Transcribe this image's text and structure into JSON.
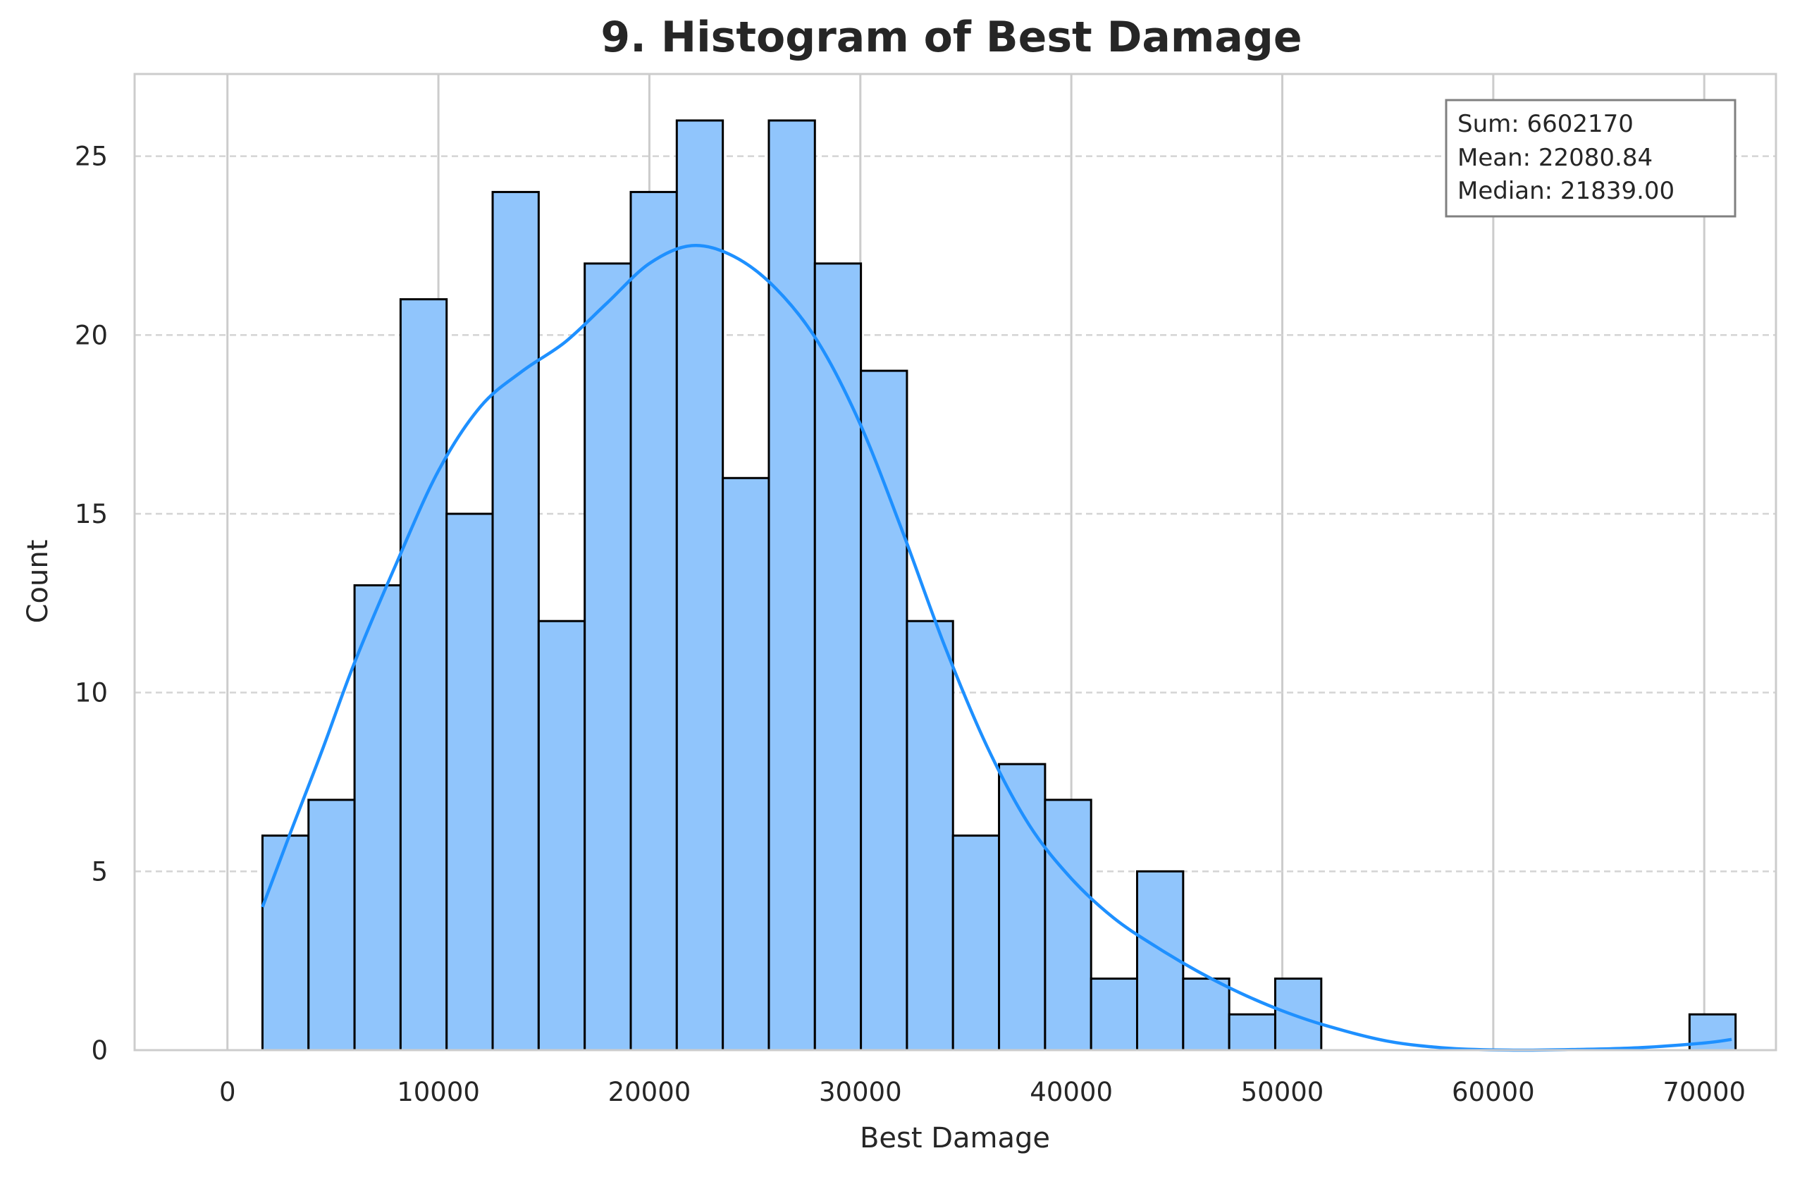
{
  "chart_data": {
    "type": "bar",
    "title": "9. Histogram of Best Damage",
    "xlabel": "Best Damage",
    "ylabel": "Count",
    "xlim": [
      -4400,
      73400
    ],
    "ylim": [
      0,
      27.3
    ],
    "xticks": [
      0,
      10000,
      20000,
      30000,
      40000,
      50000,
      60000,
      70000
    ],
    "yticks": [
      0,
      5,
      10,
      15,
      20,
      25
    ],
    "bin_start": 1661,
    "bin_width": 2182,
    "counts": [
      6,
      7,
      13,
      21,
      15,
      24,
      12,
      22,
      24,
      26,
      16,
      26,
      22,
      19,
      12,
      6,
      8,
      7,
      2,
      5,
      2,
      1,
      2,
      0,
      0,
      0,
      0,
      0,
      0,
      0,
      0,
      1
    ],
    "kde": {
      "x": [
        1661,
        3000,
        4500,
        6000,
        8000,
        10000,
        12000,
        14000,
        16000,
        18000,
        20000,
        22000,
        24000,
        26000,
        28000,
        30000,
        32000,
        34000,
        36000,
        38000,
        40000,
        42000,
        44000,
        46000,
        48000,
        50000,
        52000,
        55000,
        58000,
        61000,
        64000,
        67000,
        70000,
        71300
      ],
      "y": [
        4.0,
        6.1,
        8.4,
        10.8,
        13.6,
        16.2,
        18.0,
        19.0,
        19.8,
        20.9,
        22.0,
        22.5,
        22.2,
        21.3,
        19.8,
        17.5,
        14.5,
        11.3,
        8.5,
        6.3,
        4.8,
        3.7,
        2.9,
        2.2,
        1.6,
        1.1,
        0.7,
        0.25,
        0.05,
        0.0,
        0.02,
        0.07,
        0.2,
        0.3
      ]
    },
    "grid": true,
    "colors": {
      "bar_fill": "#90c5fc",
      "bar_edge": "#000000",
      "kde_line": "#1e90ff",
      "grid": "#cccccc",
      "text": "#262626"
    },
    "stats_box": {
      "position": "top-right",
      "lines": [
        "Sum: 6602170",
        "Mean: 22080.84",
        "Median: 21839.00"
      ]
    }
  }
}
